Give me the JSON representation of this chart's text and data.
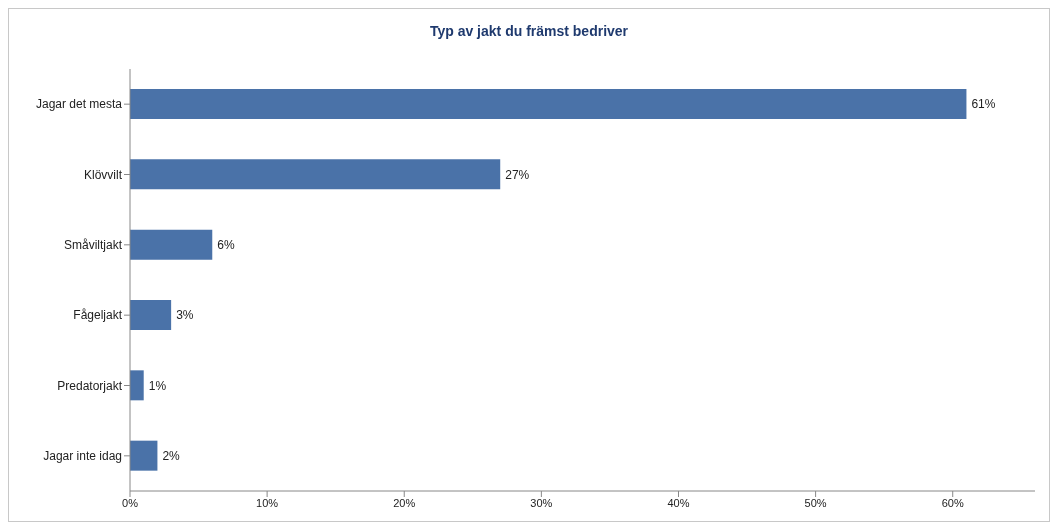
{
  "chart_data": {
    "type": "bar",
    "orientation": "horizontal",
    "title": "Typ av jakt du främst bedriver",
    "categories": [
      "Jagar det mesta",
      "Klövvilt",
      "Småviltjakt",
      "Fågeljakt",
      "Predatorjakt",
      "Jagar inte idag"
    ],
    "values": [
      61,
      27,
      6,
      3,
      1,
      2
    ],
    "value_labels": [
      "61%",
      "27%",
      "6%",
      "3%",
      "1%",
      "2%"
    ],
    "color": "#4a72a8",
    "xlim": [
      0,
      66
    ],
    "xticks": [
      {
        "value": 0,
        "label": "0%"
      },
      {
        "value": 10,
        "label": "10%"
      },
      {
        "value": 20,
        "label": "20%"
      },
      {
        "value": 30,
        "label": "30%"
      },
      {
        "value": 40,
        "label": "40%"
      },
      {
        "value": 50,
        "label": "50%"
      },
      {
        "value": 60,
        "label": "60%"
      }
    ],
    "grid": false,
    "legend": false
  }
}
